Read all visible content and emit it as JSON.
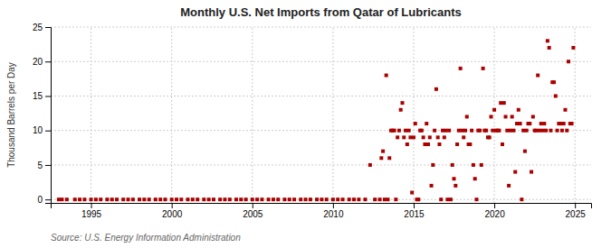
{
  "chart_data": {
    "type": "scatter",
    "title": "Monthly U.S. Net Imports from Qatar of Lubricants",
    "ylabel": "Thousand Barrels per Day",
    "source": "Source: U.S. Energy Information Administration",
    "color": "#aa0000",
    "marker": "square",
    "grid": true,
    "xlim": [
      1992.5,
      2026
    ],
    "ylim": [
      -0.5,
      25
    ],
    "xticks": [
      1995,
      2000,
      2005,
      2010,
      2015,
      2020,
      2025
    ],
    "yticks": [
      0,
      5,
      10,
      15,
      20,
      25
    ],
    "x": [
      1993.0,
      1993.2,
      1993.5,
      1994.0,
      1994.3,
      1994.6,
      1995.0,
      1995.3,
      1995.6,
      1996.0,
      1996.3,
      1996.6,
      1997.0,
      1997.3,
      1997.6,
      1998.0,
      1998.3,
      1998.6,
      1999.0,
      1999.3,
      1999.6,
      2000.0,
      2000.3,
      2000.6,
      2001.0,
      2001.3,
      2001.6,
      2002.0,
      2002.3,
      2002.6,
      2003.0,
      2003.3,
      2003.6,
      2004.0,
      2004.3,
      2004.6,
      2005.0,
      2005.3,
      2005.6,
      2006.0,
      2006.3,
      2006.6,
      2007.0,
      2007.3,
      2007.6,
      2008.0,
      2008.3,
      2008.6,
      2009.0,
      2009.3,
      2009.6,
      2010.0,
      2010.3,
      2010.6,
      2011.0,
      2011.3,
      2011.6,
      2012.0,
      2012.3,
      2012.6,
      2012.9,
      2013.0,
      2013.1,
      2013.2,
      2013.3,
      2013.4,
      2013.5,
      2013.6,
      2013.7,
      2013.8,
      2013.9,
      2014.0,
      2014.1,
      2014.2,
      2014.3,
      2014.4,
      2014.5,
      2014.6,
      2014.7,
      2014.8,
      2014.9,
      2015.0,
      2015.1,
      2015.2,
      2015.3,
      2015.4,
      2015.5,
      2015.6,
      2015.7,
      2015.8,
      2015.9,
      2016.0,
      2016.1,
      2016.2,
      2016.3,
      2016.4,
      2016.5,
      2016.6,
      2016.7,
      2016.8,
      2016.9,
      2017.0,
      2017.1,
      2017.2,
      2017.3,
      2017.4,
      2017.5,
      2017.6,
      2017.7,
      2017.8,
      2017.9,
      2018.0,
      2018.1,
      2018.2,
      2018.3,
      2018.4,
      2018.5,
      2018.6,
      2018.7,
      2018.8,
      2018.9,
      2019.0,
      2019.1,
      2019.2,
      2019.3,
      2019.4,
      2019.5,
      2019.6,
      2019.7,
      2019.8,
      2019.9,
      2020.0,
      2020.1,
      2020.2,
      2020.3,
      2020.4,
      2020.5,
      2020.6,
      2020.7,
      2020.8,
      2020.9,
      2021.0,
      2021.1,
      2021.2,
      2021.3,
      2021.4,
      2021.5,
      2021.6,
      2021.7,
      2021.8,
      2021.9,
      2022.0,
      2022.1,
      2022.2,
      2022.3,
      2022.4,
      2022.5,
      2022.6,
      2022.7,
      2022.8,
      2022.9,
      2023.0,
      2023.1,
      2023.2,
      2023.3,
      2023.4,
      2023.5,
      2023.6,
      2023.7,
      2023.8,
      2023.9,
      2024.0,
      2024.1,
      2024.2,
      2024.3,
      2024.4,
      2024.5,
      2024.6,
      2024.7,
      2024.8,
      2024.9
    ],
    "values": [
      0,
      0,
      0,
      0,
      0,
      0,
      0,
      0,
      0,
      0,
      0,
      0,
      0,
      0,
      0,
      0,
      0,
      0,
      0,
      0,
      0,
      0,
      0,
      0,
      0,
      0,
      0,
      0,
      0,
      0,
      0,
      0,
      0,
      0,
      0,
      0,
      0,
      0,
      0,
      0,
      0,
      0,
      0,
      0,
      0,
      0,
      0,
      0,
      0,
      0,
      0,
      0,
      0,
      0,
      0,
      0,
      0,
      0,
      5,
      0,
      0,
      6,
      7,
      0,
      18,
      0,
      6,
      10,
      10,
      10,
      0,
      9,
      10,
      13,
      14,
      9,
      10,
      8,
      10,
      9,
      1,
      9,
      11,
      0,
      0,
      10,
      10,
      9,
      8,
      11,
      8,
      9,
      2,
      5,
      10,
      16,
      9,
      8,
      0,
      10,
      9,
      10,
      0,
      10,
      0,
      5,
      3,
      2,
      8,
      10,
      19,
      10,
      9,
      10,
      12,
      8,
      8,
      10,
      5,
      3,
      0,
      10,
      10,
      5,
      19,
      10,
      10,
      9,
      9,
      12,
      10,
      13,
      10,
      10,
      10,
      14,
      8,
      14,
      12,
      10,
      2,
      10,
      12,
      10,
      4,
      11,
      13,
      11,
      0,
      10,
      7,
      10,
      11,
      11,
      4,
      12,
      10,
      10,
      18,
      10,
      11,
      10,
      11,
      10,
      23,
      22,
      10,
      17,
      17,
      15,
      10,
      11,
      11,
      10,
      11,
      13,
      10,
      20,
      11,
      11,
      22
    ]
  }
}
